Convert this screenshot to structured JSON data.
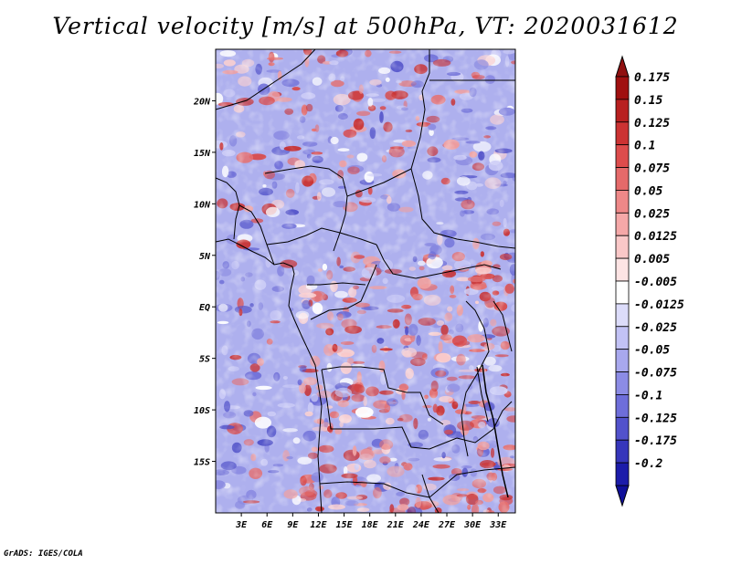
{
  "title": "Vertical velocity [m/s] at 500hPa, VT: 2020031612",
  "credit": "GrADS: IGES/COLA",
  "map": {
    "lat_range": [
      -20,
      25
    ],
    "lon_range": [
      0,
      35
    ],
    "lat_ticks": [
      {
        "value": 20,
        "label": "20N"
      },
      {
        "value": 15,
        "label": "15N"
      },
      {
        "value": 10,
        "label": "10N"
      },
      {
        "value": 5,
        "label": "5N"
      },
      {
        "value": 0,
        "label": "EQ"
      },
      {
        "value": -5,
        "label": "5S"
      },
      {
        "value": -10,
        "label": "10S"
      },
      {
        "value": -15,
        "label": "15S"
      }
    ],
    "lon_ticks": [
      {
        "value": 3,
        "label": "3E"
      },
      {
        "value": 6,
        "label": "6E"
      },
      {
        "value": 9,
        "label": "9E"
      },
      {
        "value": 12,
        "label": "12E"
      },
      {
        "value": 15,
        "label": "15E"
      },
      {
        "value": 18,
        "label": "18E"
      },
      {
        "value": 21,
        "label": "21E"
      },
      {
        "value": 24,
        "label": "24E"
      },
      {
        "value": 27,
        "label": "27E"
      },
      {
        "value": 30,
        "label": "30E"
      },
      {
        "value": 33,
        "label": "33E"
      }
    ]
  },
  "colorbar": {
    "levels": [
      {
        "label": "0.175",
        "color": "#a01010"
      },
      {
        "label": "0.15",
        "color": "#b82020"
      },
      {
        "label": "0.125",
        "color": "#cc3333"
      },
      {
        "label": "0.1",
        "color": "#dd4c4c"
      },
      {
        "label": "0.075",
        "color": "#e56a6a"
      },
      {
        "label": "0.05",
        "color": "#ee8888"
      },
      {
        "label": "0.025",
        "color": "#f5a8a8"
      },
      {
        "label": "0.0125",
        "color": "#fac8c8"
      },
      {
        "label": "0.005",
        "color": "#fde4e4"
      },
      {
        "label": "-0.005",
        "color": "#ffffff"
      },
      {
        "label": "-0.0125",
        "color": "#dcdcfa"
      },
      {
        "label": "-0.025",
        "color": "#c2c2f5"
      },
      {
        "label": "-0.05",
        "color": "#a8a8ee"
      },
      {
        "label": "-0.075",
        "color": "#8c8ce5"
      },
      {
        "label": "-0.1",
        "color": "#6e6eda"
      },
      {
        "label": "-0.125",
        "color": "#5252cc"
      },
      {
        "label": "-0.175",
        "color": "#3636bb"
      },
      {
        "label": "-0.2",
        "color": "#1c1caa"
      }
    ],
    "top_color": "#901010",
    "bottom_color": "#10109a"
  },
  "chart_data": {
    "type": "heatmap",
    "title": "Vertical velocity [m/s] at 500hPa, VT: 2020031612",
    "variable": "Vertical velocity",
    "units": "m/s",
    "pressure_level": "500hPa",
    "valid_time": "2020031612",
    "x_range": [
      0,
      35
    ],
    "y_range": [
      -20,
      25
    ],
    "x_ticks": [
      "3E",
      "6E",
      "9E",
      "12E",
      "15E",
      "18E",
      "21E",
      "24E",
      "27E",
      "30E",
      "33E"
    ],
    "y_ticks": [
      "20N",
      "15N",
      "10N",
      "5N",
      "EQ",
      "5S",
      "10S",
      "15S"
    ],
    "color_levels": [
      0.175,
      0.15,
      0.125,
      0.1,
      0.075,
      0.05,
      0.025,
      0.0125,
      0.005,
      -0.005,
      -0.0125,
      -0.025,
      -0.05,
      -0.075,
      -0.1,
      -0.125,
      -0.175,
      -0.2
    ]
  }
}
